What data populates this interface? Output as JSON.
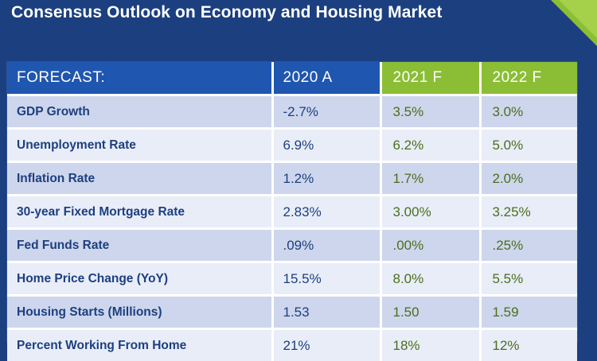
{
  "title": "Consensus Outlook on Economy and Housing Market",
  "colors": {
    "background": "#1b3f7f",
    "header_blue": "#1f56b0",
    "header_green": "#8bbe34",
    "row_dark": "#cdd6ec",
    "row_light": "#e9edf8"
  },
  "table": {
    "headers": [
      "FORECAST:",
      "2020 A",
      "2021 F",
      "2022 F"
    ],
    "rows": [
      {
        "label": "GDP Growth",
        "y2020": "-2.7%",
        "y2021": "3.5%",
        "y2022": "3.0%"
      },
      {
        "label": "Unemployment Rate",
        "y2020": "6.9%",
        "y2021": "6.2%",
        "y2022": "5.0%"
      },
      {
        "label": "Inflation Rate",
        "y2020": "1.2%",
        "y2021": "1.7%",
        "y2022": "2.0%"
      },
      {
        "label": "30-year Fixed Mortgage Rate",
        "y2020": "2.83%",
        "y2021": "3.00%",
        "y2022": "3.25%"
      },
      {
        "label": "Fed Funds Rate",
        "y2020": ".09%",
        "y2021": ".00%",
        "y2022": ".25%"
      },
      {
        "label": "Home Price Change (YoY)",
        "y2020": "15.5%",
        "y2021": "8.0%",
        "y2022": "5.5%"
      },
      {
        "label": "Housing Starts (Millions)",
        "y2020": "1.53",
        "y2021": "1.50",
        "y2022": "1.59"
      },
      {
        "label": "Percent Working From Home",
        "y2020": "21%",
        "y2021": "18%",
        "y2022": "12%"
      }
    ]
  }
}
